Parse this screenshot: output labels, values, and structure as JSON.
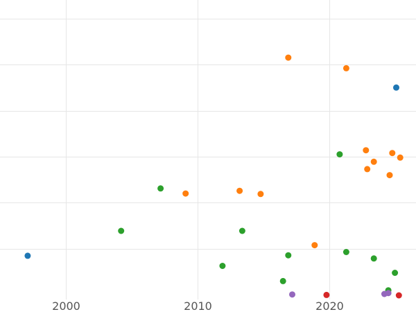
{
  "chart_data": {
    "type": "scatter",
    "title": "",
    "xlabel": "",
    "ylabel": "",
    "xlim": [
      1995,
      2026.6
    ],
    "ylim": [
      -0.1,
      6.4
    ],
    "x_ticks": [
      2000,
      2010,
      2020
    ],
    "x_tick_labels": [
      "2000",
      "2010",
      "2020"
    ],
    "y_grid": [
      1,
      2,
      3,
      4,
      5,
      6
    ],
    "grid": true,
    "legend": "none",
    "series": [
      {
        "color": "#1f77b4",
        "points": [
          {
            "x": 1997.1,
            "y": 0.85
          },
          {
            "x": 2025.1,
            "y": 4.5
          }
        ]
      },
      {
        "color": "#ff7f0e",
        "points": [
          {
            "x": 2016.9,
            "y": 5.15
          },
          {
            "x": 2021.3,
            "y": 4.92
          },
          {
            "x": 2009.1,
            "y": 2.2
          },
          {
            "x": 2013.2,
            "y": 2.26
          },
          {
            "x": 2014.8,
            "y": 2.19
          },
          {
            "x": 2018.9,
            "y": 1.08
          },
          {
            "x": 2022.8,
            "y": 3.14
          },
          {
            "x": 2024.8,
            "y": 3.08
          },
          {
            "x": 2025.4,
            "y": 2.98
          },
          {
            "x": 2023.4,
            "y": 2.89
          },
          {
            "x": 2022.9,
            "y": 2.73
          },
          {
            "x": 2024.6,
            "y": 2.6
          }
        ]
      },
      {
        "color": "#2ca02c",
        "points": [
          {
            "x": 2020.8,
            "y": 3.05
          },
          {
            "x": 2007.2,
            "y": 2.31
          },
          {
            "x": 2004.2,
            "y": 1.39
          },
          {
            "x": 2013.4,
            "y": 1.39
          },
          {
            "x": 2016.9,
            "y": 0.86
          },
          {
            "x": 2021.3,
            "y": 0.93
          },
          {
            "x": 2023.4,
            "y": 0.79
          },
          {
            "x": 2011.9,
            "y": 0.63
          },
          {
            "x": 2025.0,
            "y": 0.48
          },
          {
            "x": 2016.5,
            "y": 0.3
          },
          {
            "x": 2024.5,
            "y": 0.1
          }
        ]
      },
      {
        "color": "#d62728",
        "points": [
          {
            "x": 2019.8,
            "y": 0.0
          },
          {
            "x": 2025.3,
            "y": -0.01
          }
        ]
      },
      {
        "color": "#9467bd",
        "points": [
          {
            "x": 2017.2,
            "y": 0.01
          },
          {
            "x": 2024.2,
            "y": 0.02
          },
          {
            "x": 2024.5,
            "y": 0.04
          }
        ]
      }
    ]
  }
}
